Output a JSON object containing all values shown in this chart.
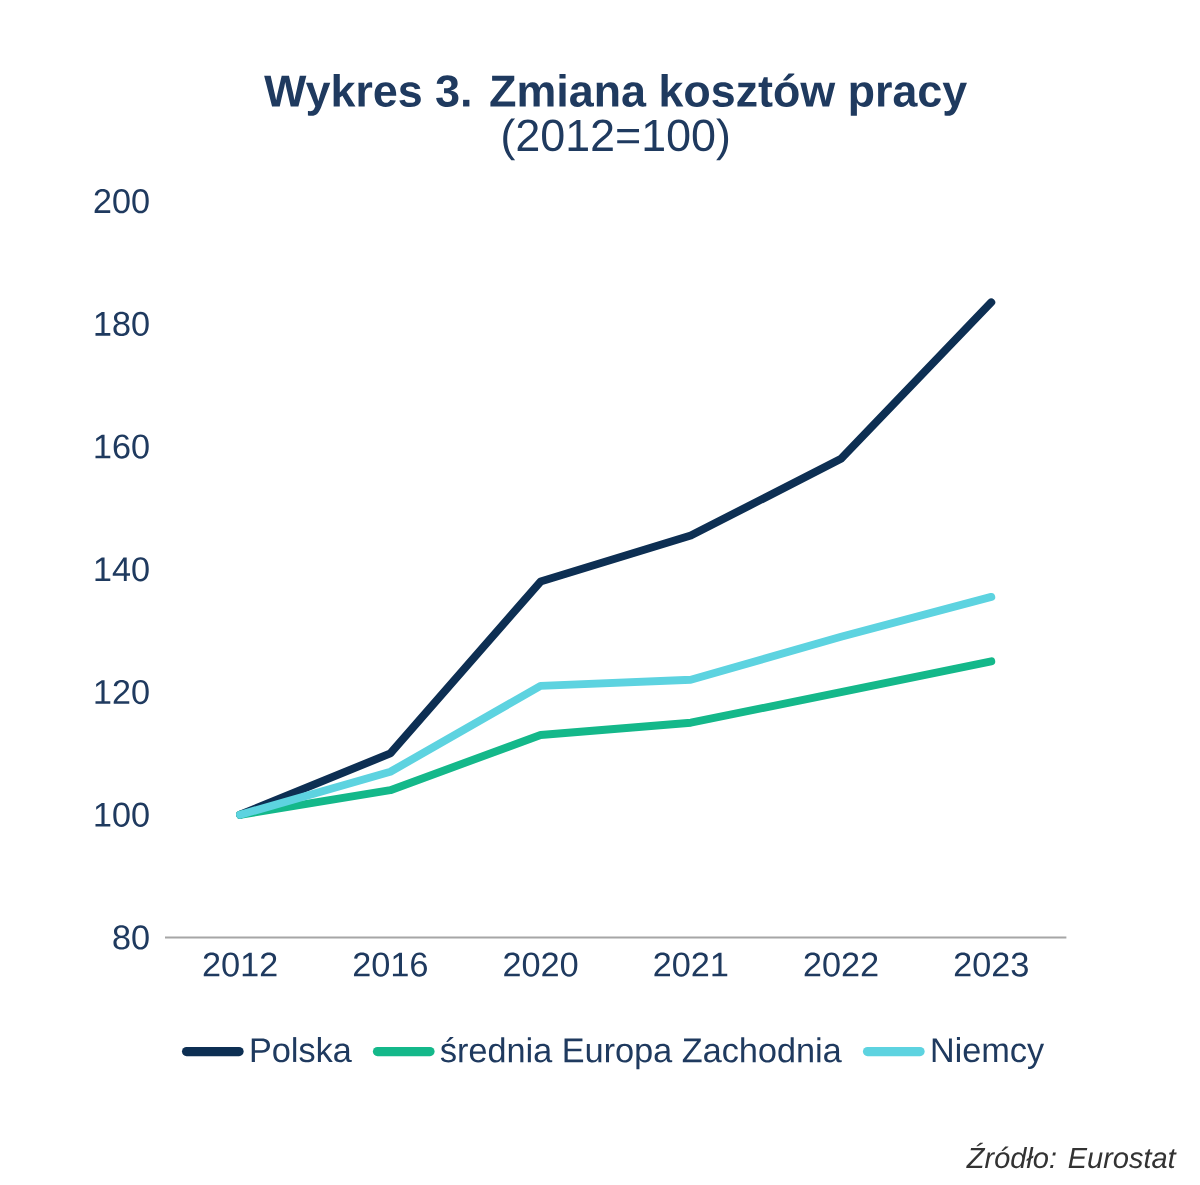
{
  "chart_data": {
    "type": "line",
    "title": "Wykres 3. Zmiana kosztów pracy",
    "subtitle": "(2012=100)",
    "categories": [
      "2012",
      "2016",
      "2020",
      "2021",
      "2022",
      "2023"
    ],
    "series": [
      {
        "name": "Polska",
        "color": "#0d2f53",
        "values": [
          100,
          110,
          138,
          145.5,
          158,
          183.5
        ]
      },
      {
        "name": "średnia Europa Zachodnia",
        "color": "#14b88a",
        "values": [
          100,
          104,
          113,
          115,
          120,
          125
        ]
      },
      {
        "name": "Niemcy",
        "color": "#5dd3e0",
        "values": [
          100,
          107,
          121,
          122,
          129,
          135.5
        ]
      }
    ],
    "ylim": [
      80,
      200
    ],
    "yticks": [
      80,
      100,
      120,
      140,
      160,
      180,
      200
    ],
    "grid": false,
    "legend": "bottom",
    "marker": "none",
    "line_style": "solid",
    "annotations": [
      "Źródło: Eurostat"
    ]
  }
}
